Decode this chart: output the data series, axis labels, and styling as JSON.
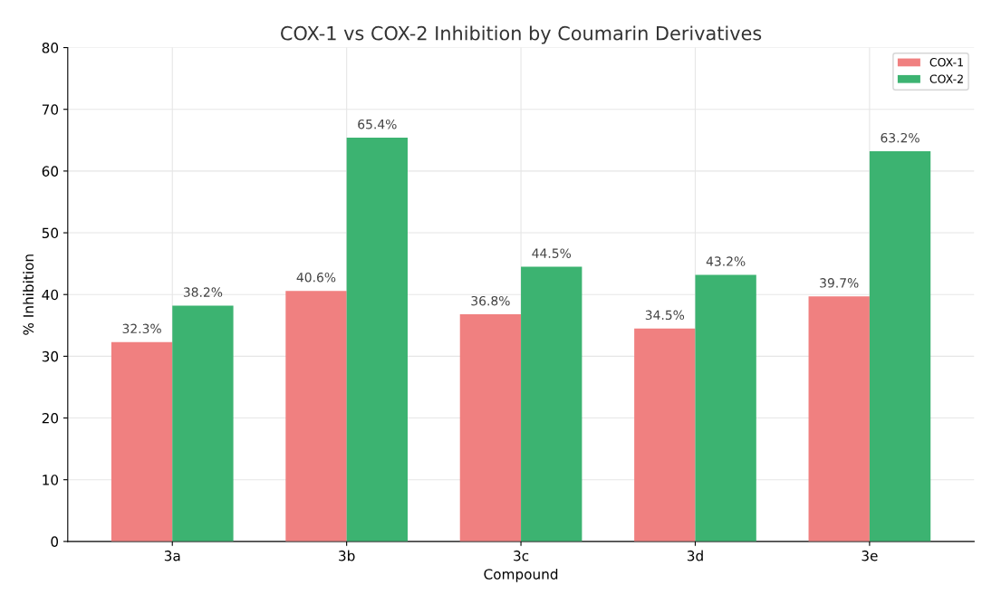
{
  "chart_data": {
    "type": "bar",
    "title": "COX-1 vs COX-2 Inhibition by Coumarin Derivatives",
    "xlabel": "Compound",
    "ylabel": "% Inhibition",
    "categories": [
      "3a",
      "3b",
      "3c",
      "3d",
      "3e"
    ],
    "series": [
      {
        "name": "COX-1",
        "color": "#f08080",
        "values": [
          32.3,
          40.6,
          36.8,
          34.5,
          39.7
        ],
        "value_labels": [
          "32.3%",
          "40.6%",
          "36.8%",
          "34.5%",
          "39.7%"
        ]
      },
      {
        "name": "COX-2",
        "color": "#3cb371",
        "values": [
          38.2,
          65.4,
          44.5,
          43.2,
          63.2
        ],
        "value_labels": [
          "38.2%",
          "65.4%",
          "44.5%",
          "43.2%",
          "63.2%"
        ]
      }
    ],
    "ylim": [
      0,
      80
    ],
    "yticks": [
      0,
      10,
      20,
      30,
      40,
      50,
      60,
      70,
      80
    ],
    "grid": true,
    "legend": "top right"
  }
}
